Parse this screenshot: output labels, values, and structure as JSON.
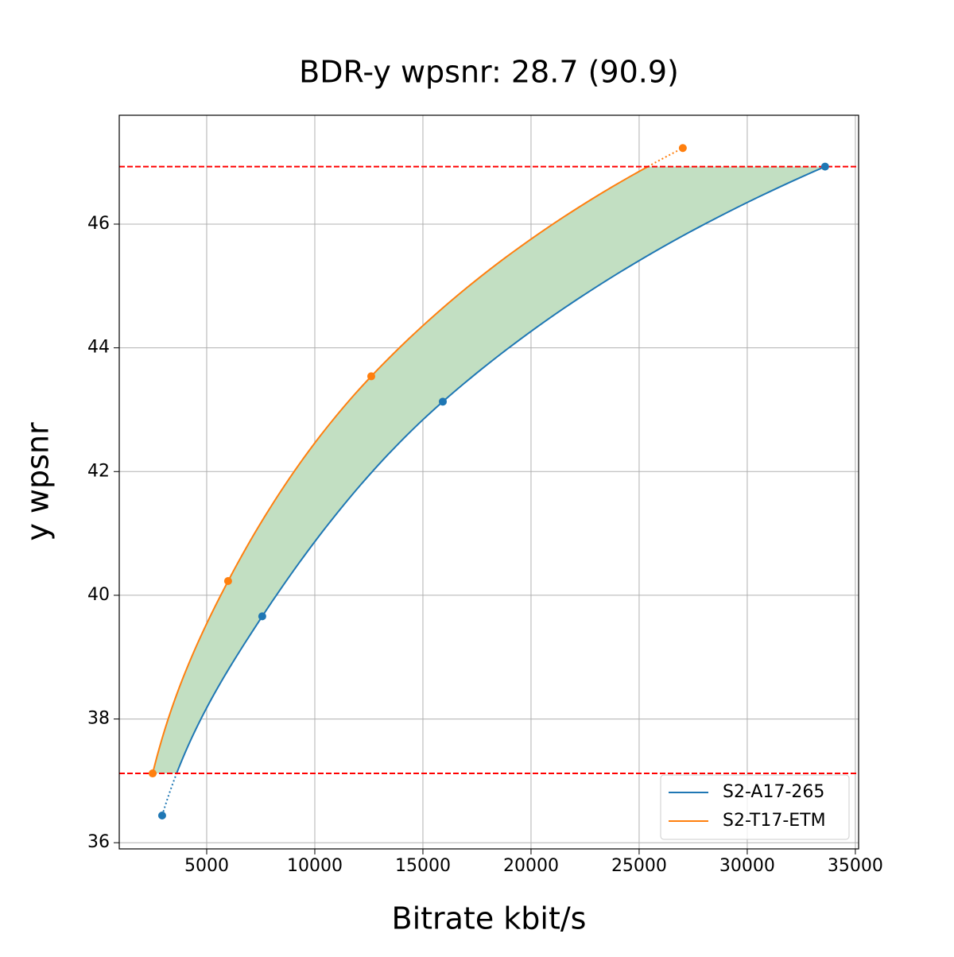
{
  "chart_data": {
    "type": "line",
    "title": "BDR-y wpsnr: 28.7 (90.9)",
    "x_label": "Bitrate kbit/s",
    "y_label": "y wpsnr",
    "series": [
      {
        "name": "S2-A17-265",
        "color": "#1f77b4",
        "x": [
          2940,
          7570,
          15920,
          33600
        ],
        "values": [
          36.44,
          39.66,
          43.13,
          46.93
        ]
      },
      {
        "name": "S2-T17-ETM",
        "color": "#ff7f0e",
        "x": [
          2500,
          5990,
          12610,
          27020
        ],
        "values": [
          37.12,
          40.23,
          43.54,
          47.23
        ]
      }
    ],
    "fill_color": "#c2dfc2",
    "bound_color": "#ff0000",
    "xlim": [
      956,
      35150
    ],
    "ylim": [
      35.9,
      47.76
    ],
    "xticks": [
      5000,
      10000,
      15000,
      20000,
      25000,
      30000,
      35000
    ],
    "yticks": [
      36,
      38,
      40,
      42,
      44,
      46
    ],
    "grid": true,
    "legend": "lower right"
  }
}
